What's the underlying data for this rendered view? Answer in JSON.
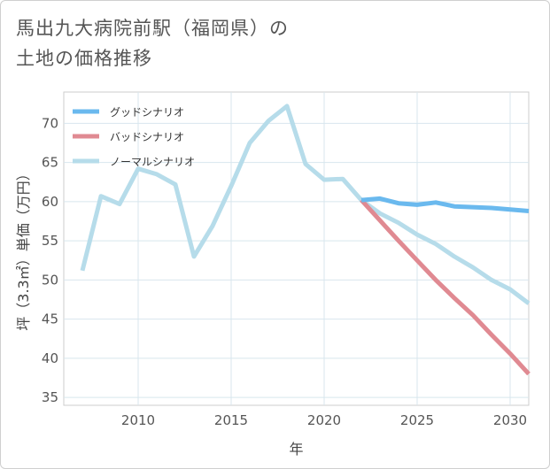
{
  "title_line1": "馬出九大病院前駅（福岡県）の",
  "title_line2": "土地の価格推移",
  "chart_data": {
    "type": "line",
    "title": "馬出九大病院前駅（福岡県）の土地の価格推移",
    "xlabel": "年",
    "ylabel": "坪（3.3㎡）単価（万円）",
    "xlim": [
      2006,
      2031
    ],
    "ylim": [
      34,
      74
    ],
    "xticks": [
      2010,
      2015,
      2020,
      2025,
      2030
    ],
    "yticks": [
      35,
      40,
      45,
      50,
      55,
      60,
      65,
      70
    ],
    "grid": true,
    "legend_position": "top-left",
    "series": [
      {
        "name": "グッドシナリオ",
        "color": "#6ab9ee",
        "x": [
          2022,
          2023,
          2024,
          2025,
          2026,
          2027,
          2028,
          2029,
          2030,
          2031
        ],
        "y": [
          60.2,
          60.4,
          59.8,
          59.6,
          59.9,
          59.4,
          59.3,
          59.2,
          59.0,
          58.8
        ]
      },
      {
        "name": "バッドシナリオ",
        "color": "#e08a92",
        "x": [
          2022,
          2023,
          2024,
          2025,
          2026,
          2027,
          2028,
          2029,
          2030,
          2031
        ],
        "y": [
          60.2,
          57.6,
          55.0,
          52.5,
          50.0,
          47.7,
          45.5,
          43.0,
          40.6,
          38.0
        ]
      },
      {
        "name": "ノーマルシナリオ",
        "color": "#b6dcea",
        "x": [
          2007,
          2008,
          2009,
          2010,
          2011,
          2012,
          2013,
          2014,
          2015,
          2016,
          2017,
          2018,
          2019,
          2020,
          2021,
          2022,
          2023,
          2024,
          2025,
          2026,
          2027,
          2028,
          2029,
          2030,
          2031
        ],
        "y": [
          51.2,
          60.7,
          59.7,
          64.2,
          63.5,
          62.2,
          53.0,
          56.9,
          62.0,
          67.5,
          70.3,
          72.2,
          64.8,
          62.8,
          62.9,
          60.2,
          58.5,
          57.3,
          55.8,
          54.6,
          53.0,
          51.6,
          50.0,
          48.8,
          47.0
        ]
      }
    ]
  }
}
